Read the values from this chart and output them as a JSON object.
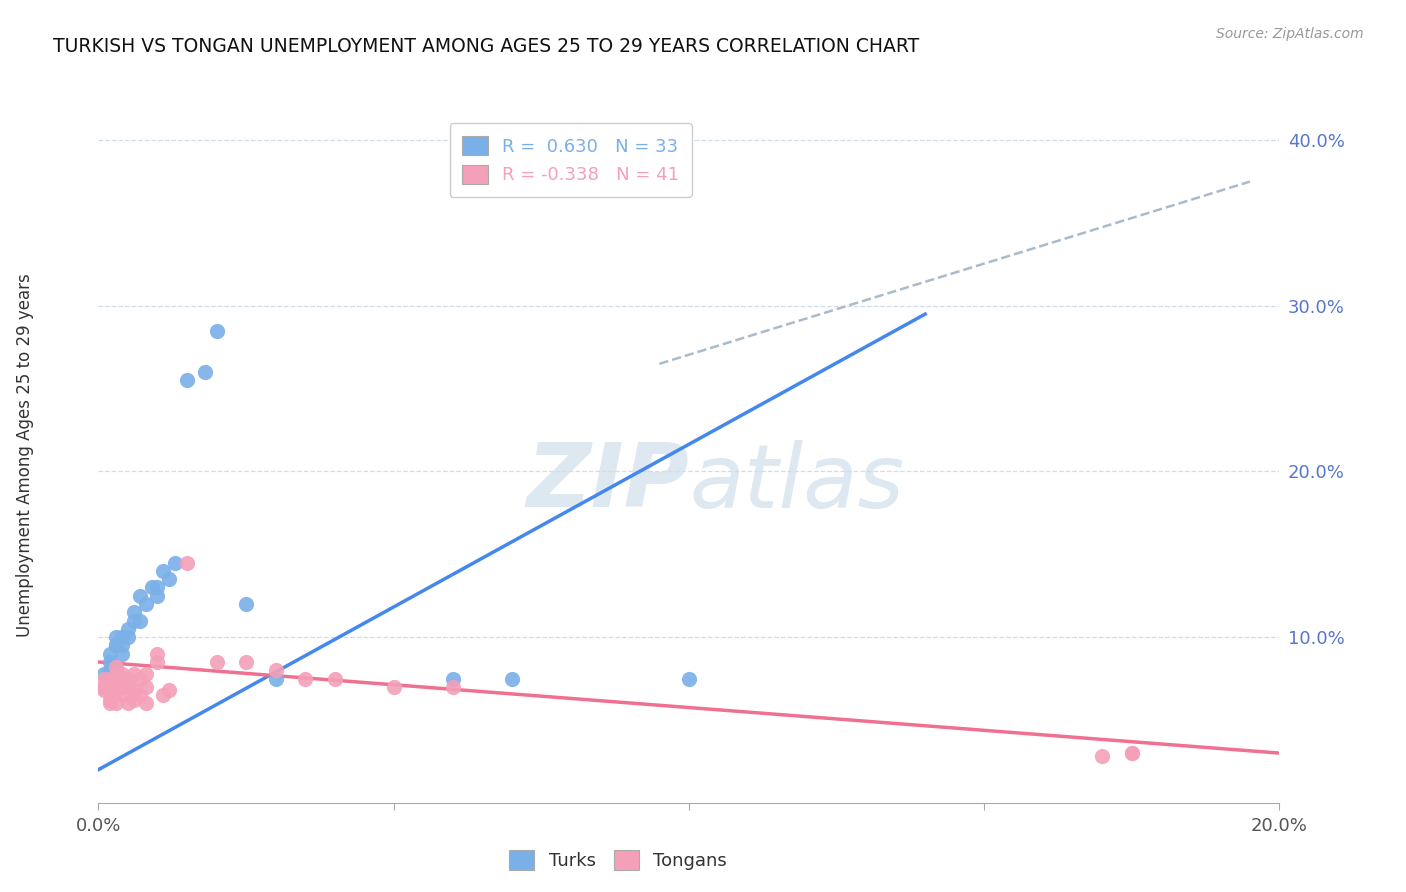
{
  "title": "TURKISH VS TONGAN UNEMPLOYMENT AMONG AGES 25 TO 29 YEARS CORRELATION CHART",
  "source": "Source: ZipAtlas.com",
  "ylabel_label": "Unemployment Among Ages 25 to 29 years",
  "legend_turks": "Turks",
  "legend_tongans": "Tongans",
  "r_turks": 0.63,
  "n_turks": 33,
  "r_tongans": -0.338,
  "n_tongans": 41,
  "turks_color": "#7ab0e8",
  "tongans_color": "#f4a0b8",
  "turks_line_color": "#4488ee",
  "tongans_line_color": "#f07090",
  "dashed_line_color": "#aabbcc",
  "turks_x": [
    0.001,
    0.001,
    0.002,
    0.002,
    0.002,
    0.003,
    0.003,
    0.003,
    0.003,
    0.004,
    0.004,
    0.004,
    0.005,
    0.005,
    0.006,
    0.006,
    0.007,
    0.007,
    0.008,
    0.009,
    0.01,
    0.01,
    0.011,
    0.012,
    0.013,
    0.015,
    0.018,
    0.02,
    0.025,
    0.03,
    0.06,
    0.07,
    0.1
  ],
  "turks_y": [
    0.07,
    0.078,
    0.08,
    0.085,
    0.09,
    0.08,
    0.095,
    0.095,
    0.1,
    0.09,
    0.095,
    0.1,
    0.1,
    0.105,
    0.11,
    0.115,
    0.11,
    0.125,
    0.12,
    0.13,
    0.125,
    0.13,
    0.14,
    0.135,
    0.145,
    0.255,
    0.26,
    0.285,
    0.12,
    0.075,
    0.075,
    0.075,
    0.075
  ],
  "tongans_x": [
    0.001,
    0.001,
    0.001,
    0.002,
    0.002,
    0.002,
    0.002,
    0.003,
    0.003,
    0.003,
    0.003,
    0.003,
    0.004,
    0.004,
    0.004,
    0.005,
    0.005,
    0.005,
    0.006,
    0.006,
    0.006,
    0.007,
    0.007,
    0.008,
    0.008,
    0.008,
    0.01,
    0.01,
    0.011,
    0.012,
    0.015,
    0.02,
    0.025,
    0.03,
    0.035,
    0.04,
    0.05,
    0.06,
    0.17,
    0.175,
    0.175
  ],
  "tongans_y": [
    0.068,
    0.07,
    0.075,
    0.06,
    0.062,
    0.07,
    0.075,
    0.06,
    0.068,
    0.07,
    0.078,
    0.082,
    0.065,
    0.07,
    0.078,
    0.06,
    0.07,
    0.075,
    0.062,
    0.068,
    0.078,
    0.065,
    0.075,
    0.06,
    0.07,
    0.078,
    0.085,
    0.09,
    0.065,
    0.068,
    0.145,
    0.085,
    0.085,
    0.08,
    0.075,
    0.075,
    0.07,
    0.07,
    0.028,
    0.03,
    0.03
  ],
  "xlim": [
    0.0,
    0.2
  ],
  "ylim": [
    0.0,
    0.42
  ],
  "turks_trendline_x": [
    0.0,
    0.14
  ],
  "turks_trendline_y": [
    0.02,
    0.295
  ],
  "tongans_trendline_x": [
    0.0,
    0.2
  ],
  "tongans_trendline_y": [
    0.085,
    0.03
  ],
  "dashed_trendline_x": [
    0.095,
    0.195
  ],
  "dashed_trendline_y": [
    0.265,
    0.375
  ]
}
